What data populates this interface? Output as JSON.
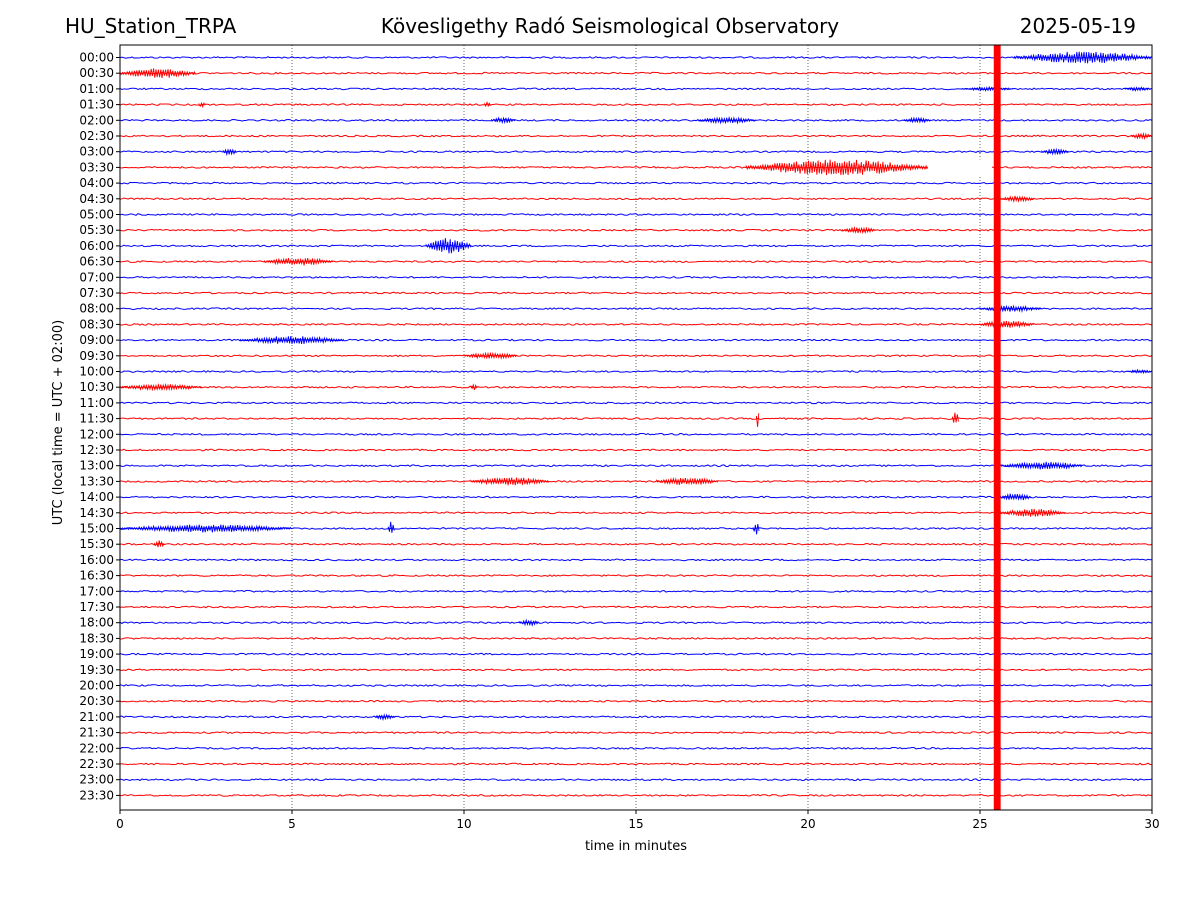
{
  "header": {
    "station": "HU_Station_TRPA",
    "observatory": "Kövesligethy Radó Seismological Observatory",
    "date": "2025-05-19"
  },
  "chart_data": {
    "type": "line",
    "title": "Kövesligethy Radó Seismological Observatory",
    "xlabel": "time in minutes",
    "ylabel": "UTC (local time = UTC + 02:00)",
    "xlim": [
      0,
      30
    ],
    "xticks": [
      "0",
      "5",
      "10",
      "15",
      "20",
      "25",
      "30"
    ],
    "vertical_gridlines_at_minutes": [
      5,
      10,
      15,
      20,
      25
    ],
    "grid": "vertical dotted",
    "row_labels": [
      "00:00",
      "00:30",
      "01:00",
      "01:30",
      "02:00",
      "02:30",
      "03:00",
      "03:30",
      "04:00",
      "04:30",
      "05:00",
      "05:30",
      "06:00",
      "06:30",
      "07:00",
      "07:30",
      "08:00",
      "08:30",
      "09:00",
      "09:30",
      "10:00",
      "10:30",
      "11:00",
      "11:30",
      "12:00",
      "12:30",
      "13:00",
      "13:30",
      "14:00",
      "14:30",
      "15:00",
      "15:30",
      "16:00",
      "16:30",
      "17:00",
      "17:30",
      "18:00",
      "18:30",
      "19:00",
      "19:30",
      "20:00",
      "20:30",
      "21:00",
      "21:30",
      "22:00",
      "22:30",
      "23:00",
      "23:30"
    ],
    "trace_colors": [
      "#0000ff",
      "#ff0000"
    ],
    "large_event": {
      "start_minute": 25.4,
      "end_minute": 25.6,
      "color": "#ff0000"
    },
    "data_gap": {
      "row": "03:30",
      "from_minute": 23.5,
      "to_minute": 25.3
    },
    "events": [
      {
        "row": "00:00",
        "minute": 26.0,
        "end": 30.0,
        "amp": 6
      },
      {
        "row": "00:30",
        "minute": 0.0,
        "end": 2.2,
        "amp": 5
      },
      {
        "row": "01:00",
        "minute": 24.5,
        "end": 26.0,
        "amp": 2
      },
      {
        "row": "01:00",
        "minute": 29.2,
        "end": 30.0,
        "amp": 2
      },
      {
        "row": "01:30",
        "minute": 2.3,
        "end": 2.5,
        "amp": 3
      },
      {
        "row": "01:30",
        "minute": 10.6,
        "end": 10.8,
        "amp": 3
      },
      {
        "row": "02:00",
        "minute": 10.8,
        "end": 11.5,
        "amp": 3
      },
      {
        "row": "02:00",
        "minute": 16.8,
        "end": 18.5,
        "amp": 3
      },
      {
        "row": "02:00",
        "minute": 22.8,
        "end": 23.6,
        "amp": 3
      },
      {
        "row": "02:30",
        "minute": 29.4,
        "end": 30.0,
        "amp": 3
      },
      {
        "row": "03:00",
        "minute": 3.0,
        "end": 3.4,
        "amp": 4
      },
      {
        "row": "03:00",
        "minute": 26.8,
        "end": 27.6,
        "amp": 3
      },
      {
        "row": "03:30",
        "minute": 18.2,
        "end": 23.5,
        "amp": 8
      },
      {
        "row": "04:30",
        "minute": 25.6,
        "end": 26.6,
        "amp": 3
      },
      {
        "row": "05:30",
        "minute": 21.0,
        "end": 22.0,
        "amp": 3
      },
      {
        "row": "06:00",
        "minute": 8.9,
        "end": 10.2,
        "amp": 8
      },
      {
        "row": "06:30",
        "minute": 4.2,
        "end": 6.2,
        "amp": 4
      },
      {
        "row": "08:00",
        "minute": 25.0,
        "end": 26.8,
        "amp": 3
      },
      {
        "row": "08:30",
        "minute": 25.0,
        "end": 26.6,
        "amp": 4
      },
      {
        "row": "09:00",
        "minute": 3.5,
        "end": 6.5,
        "amp": 4
      },
      {
        "row": "09:30",
        "minute": 10.0,
        "end": 11.6,
        "amp": 3
      },
      {
        "row": "10:00",
        "minute": 29.3,
        "end": 30.0,
        "amp": 2
      },
      {
        "row": "10:30",
        "minute": 0.0,
        "end": 2.4,
        "amp": 3
      },
      {
        "row": "10:30",
        "minute": 10.2,
        "end": 10.4,
        "amp": 4
      },
      {
        "row": "11:30",
        "minute": 18.5,
        "end": 18.6,
        "amp": 11
      },
      {
        "row": "11:30",
        "minute": 24.2,
        "end": 24.4,
        "amp": 8
      },
      {
        "row": "13:00",
        "minute": 25.6,
        "end": 28.0,
        "amp": 4
      },
      {
        "row": "13:30",
        "minute": 10.2,
        "end": 12.5,
        "amp": 4
      },
      {
        "row": "13:30",
        "minute": 15.6,
        "end": 17.4,
        "amp": 4
      },
      {
        "row": "14:00",
        "minute": 25.6,
        "end": 26.5,
        "amp": 4
      },
      {
        "row": "14:30",
        "minute": 25.6,
        "end": 27.5,
        "amp": 4
      },
      {
        "row": "15:00",
        "minute": 0.0,
        "end": 5.0,
        "amp": 4
      },
      {
        "row": "15:00",
        "minute": 7.8,
        "end": 8.0,
        "amp": 9
      },
      {
        "row": "15:00",
        "minute": 18.4,
        "end": 18.6,
        "amp": 6
      },
      {
        "row": "15:30",
        "minute": 1.0,
        "end": 1.3,
        "amp": 4
      },
      {
        "row": "18:00",
        "minute": 11.6,
        "end": 12.2,
        "amp": 3
      },
      {
        "row": "21:00",
        "minute": 7.4,
        "end": 8.0,
        "amp": 3
      }
    ]
  }
}
